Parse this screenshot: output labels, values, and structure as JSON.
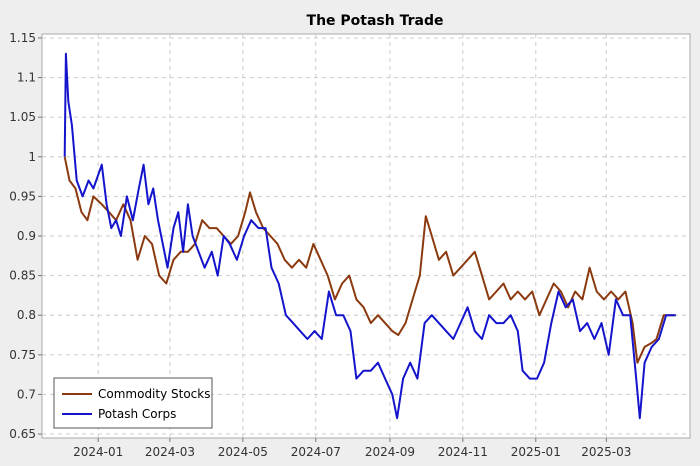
{
  "chart_data": {
    "type": "line",
    "title": "The Potash Trade",
    "xlabel": "",
    "ylabel": "",
    "ylim": [
      0.645,
      1.155
    ],
    "xlim": [
      "2023-11-15",
      "2025-05-10"
    ],
    "y_ticks": [
      "0.65",
      "0.7",
      "0.75",
      "0.8",
      "0.85",
      "0.9",
      "0.95",
      "1",
      "1.05",
      "1.1",
      "1.15"
    ],
    "x_ticks": [
      "2024-01",
      "2024-03",
      "2024-05",
      "2024-07",
      "2024-09",
      "2024-11",
      "2025-01",
      "2025-03"
    ],
    "grid": true,
    "legend_position": "bottom-left",
    "background": "#ffffff",
    "series": [
      {
        "name": "Commodity Stocks",
        "color": "#8b3a0f",
        "points": [
          [
            "2023-12-04",
            1.0
          ],
          [
            "2023-12-08",
            0.97
          ],
          [
            "2023-12-13",
            0.96
          ],
          [
            "2023-12-18",
            0.93
          ],
          [
            "2023-12-23",
            0.92
          ],
          [
            "2023-12-28",
            0.95
          ],
          [
            "2024-01-04",
            0.94
          ],
          [
            "2024-01-10",
            0.93
          ],
          [
            "2024-01-16",
            0.92
          ],
          [
            "2024-01-22",
            0.94
          ],
          [
            "2024-01-28",
            0.92
          ],
          [
            "2024-02-03",
            0.87
          ],
          [
            "2024-02-09",
            0.9
          ],
          [
            "2024-02-15",
            0.89
          ],
          [
            "2024-02-21",
            0.85
          ],
          [
            "2024-02-27",
            0.84
          ],
          [
            "2024-03-04",
            0.87
          ],
          [
            "2024-03-10",
            0.88
          ],
          [
            "2024-03-16",
            0.88
          ],
          [
            "2024-03-22",
            0.89
          ],
          [
            "2024-03-28",
            0.92
          ],
          [
            "2024-04-03",
            0.91
          ],
          [
            "2024-04-09",
            0.91
          ],
          [
            "2024-04-15",
            0.9
          ],
          [
            "2024-04-21",
            0.89
          ],
          [
            "2024-04-27",
            0.9
          ],
          [
            "2024-05-03",
            0.93
          ],
          [
            "2024-05-07",
            0.955
          ],
          [
            "2024-05-12",
            0.93
          ],
          [
            "2024-05-18",
            0.91
          ],
          [
            "2024-05-24",
            0.9
          ],
          [
            "2024-05-30",
            0.89
          ],
          [
            "2024-06-05",
            0.87
          ],
          [
            "2024-06-11",
            0.86
          ],
          [
            "2024-06-17",
            0.87
          ],
          [
            "2024-06-23",
            0.86
          ],
          [
            "2024-06-29",
            0.89
          ],
          [
            "2024-07-05",
            0.87
          ],
          [
            "2024-07-11",
            0.85
          ],
          [
            "2024-07-17",
            0.82
          ],
          [
            "2024-07-23",
            0.84
          ],
          [
            "2024-07-29",
            0.85
          ],
          [
            "2024-08-04",
            0.82
          ],
          [
            "2024-08-10",
            0.81
          ],
          [
            "2024-08-16",
            0.79
          ],
          [
            "2024-08-22",
            0.8
          ],
          [
            "2024-08-28",
            0.79
          ],
          [
            "2024-09-03",
            0.78
          ],
          [
            "2024-09-08",
            0.775
          ],
          [
            "2024-09-14",
            0.79
          ],
          [
            "2024-09-20",
            0.82
          ],
          [
            "2024-09-26",
            0.85
          ],
          [
            "2024-10-01",
            0.925
          ],
          [
            "2024-10-06",
            0.9
          ],
          [
            "2024-10-12",
            0.87
          ],
          [
            "2024-10-18",
            0.88
          ],
          [
            "2024-10-24",
            0.85
          ],
          [
            "2024-10-30",
            0.86
          ],
          [
            "2024-11-05",
            0.87
          ],
          [
            "2024-11-11",
            0.88
          ],
          [
            "2024-11-17",
            0.85
          ],
          [
            "2024-11-23",
            0.82
          ],
          [
            "2024-11-29",
            0.83
          ],
          [
            "2024-12-05",
            0.84
          ],
          [
            "2024-12-11",
            0.82
          ],
          [
            "2024-12-17",
            0.83
          ],
          [
            "2024-12-23",
            0.82
          ],
          [
            "2024-12-29",
            0.83
          ],
          [
            "2025-01-04",
            0.8
          ],
          [
            "2025-01-10",
            0.82
          ],
          [
            "2025-01-16",
            0.84
          ],
          [
            "2025-01-22",
            0.83
          ],
          [
            "2025-01-28",
            0.81
          ],
          [
            "2025-02-03",
            0.83
          ],
          [
            "2025-02-09",
            0.82
          ],
          [
            "2025-02-15",
            0.86
          ],
          [
            "2025-02-21",
            0.83
          ],
          [
            "2025-02-27",
            0.82
          ],
          [
            "2025-03-05",
            0.83
          ],
          [
            "2025-03-11",
            0.82
          ],
          [
            "2025-03-17",
            0.83
          ],
          [
            "2025-03-23",
            0.79
          ],
          [
            "2025-03-27",
            0.74
          ],
          [
            "2025-04-02",
            0.76
          ],
          [
            "2025-04-08",
            0.765
          ],
          [
            "2025-04-12",
            0.77
          ],
          [
            "2025-04-18",
            0.8
          ],
          [
            "2025-04-28",
            0.8
          ]
        ]
      },
      {
        "name": "Potash Corps",
        "color": "#1414cc",
        "points": [
          [
            "2023-12-04",
            1.0
          ],
          [
            "2023-12-05",
            1.13
          ],
          [
            "2023-12-07",
            1.07
          ],
          [
            "2023-12-10",
            1.04
          ],
          [
            "2023-12-14",
            0.97
          ],
          [
            "2023-12-19",
            0.95
          ],
          [
            "2023-12-24",
            0.97
          ],
          [
            "2023-12-28",
            0.96
          ],
          [
            "2024-01-04",
            0.99
          ],
          [
            "2024-01-08",
            0.94
          ],
          [
            "2024-01-12",
            0.91
          ],
          [
            "2024-01-16",
            0.92
          ],
          [
            "2024-01-20",
            0.9
          ],
          [
            "2024-01-25",
            0.95
          ],
          [
            "2024-01-30",
            0.92
          ],
          [
            "2024-02-04",
            0.96
          ],
          [
            "2024-02-08",
            0.99
          ],
          [
            "2024-02-12",
            0.94
          ],
          [
            "2024-02-16",
            0.96
          ],
          [
            "2024-02-20",
            0.92
          ],
          [
            "2024-02-24",
            0.89
          ],
          [
            "2024-02-28",
            0.86
          ],
          [
            "2024-03-04",
            0.91
          ],
          [
            "2024-03-08",
            0.93
          ],
          [
            "2024-03-12",
            0.88
          ],
          [
            "2024-03-16",
            0.94
          ],
          [
            "2024-03-20",
            0.9
          ],
          [
            "2024-03-25",
            0.88
          ],
          [
            "2024-03-30",
            0.86
          ],
          [
            "2024-04-05",
            0.88
          ],
          [
            "2024-04-10",
            0.85
          ],
          [
            "2024-04-15",
            0.9
          ],
          [
            "2024-04-20",
            0.89
          ],
          [
            "2024-04-26",
            0.87
          ],
          [
            "2024-05-02",
            0.9
          ],
          [
            "2024-05-08",
            0.92
          ],
          [
            "2024-05-14",
            0.91
          ],
          [
            "2024-05-20",
            0.91
          ],
          [
            "2024-05-25",
            0.86
          ],
          [
            "2024-05-31",
            0.84
          ],
          [
            "2024-06-06",
            0.8
          ],
          [
            "2024-06-12",
            0.79
          ],
          [
            "2024-06-18",
            0.78
          ],
          [
            "2024-06-24",
            0.77
          ],
          [
            "2024-06-30",
            0.78
          ],
          [
            "2024-07-06",
            0.77
          ],
          [
            "2024-07-12",
            0.83
          ],
          [
            "2024-07-18",
            0.8
          ],
          [
            "2024-07-24",
            0.8
          ],
          [
            "2024-07-30",
            0.78
          ],
          [
            "2024-08-04",
            0.72
          ],
          [
            "2024-08-10",
            0.73
          ],
          [
            "2024-08-16",
            0.73
          ],
          [
            "2024-08-22",
            0.74
          ],
          [
            "2024-08-28",
            0.72
          ],
          [
            "2024-09-03",
            0.7
          ],
          [
            "2024-09-07",
            0.67
          ],
          [
            "2024-09-12",
            0.72
          ],
          [
            "2024-09-18",
            0.74
          ],
          [
            "2024-09-24",
            0.72
          ],
          [
            "2024-09-30",
            0.79
          ],
          [
            "2024-10-06",
            0.8
          ],
          [
            "2024-10-12",
            0.79
          ],
          [
            "2024-10-18",
            0.78
          ],
          [
            "2024-10-24",
            0.77
          ],
          [
            "2024-10-30",
            0.79
          ],
          [
            "2024-11-05",
            0.81
          ],
          [
            "2024-11-11",
            0.78
          ],
          [
            "2024-11-17",
            0.77
          ],
          [
            "2024-11-23",
            0.8
          ],
          [
            "2024-11-29",
            0.79
          ],
          [
            "2024-12-05",
            0.79
          ],
          [
            "2024-12-11",
            0.8
          ],
          [
            "2024-12-17",
            0.78
          ],
          [
            "2024-12-21",
            0.73
          ],
          [
            "2024-12-27",
            0.72
          ],
          [
            "2025-01-02",
            0.72
          ],
          [
            "2025-01-08",
            0.74
          ],
          [
            "2025-01-14",
            0.79
          ],
          [
            "2025-01-20",
            0.83
          ],
          [
            "2025-01-26",
            0.81
          ],
          [
            "2025-02-01",
            0.82
          ],
          [
            "2025-02-07",
            0.78
          ],
          [
            "2025-02-13",
            0.79
          ],
          [
            "2025-02-19",
            0.77
          ],
          [
            "2025-02-25",
            0.79
          ],
          [
            "2025-03-03",
            0.75
          ],
          [
            "2025-03-09",
            0.82
          ],
          [
            "2025-03-15",
            0.8
          ],
          [
            "2025-03-21",
            0.8
          ],
          [
            "2025-03-26",
            0.72
          ],
          [
            "2025-03-29",
            0.67
          ],
          [
            "2025-04-02",
            0.74
          ],
          [
            "2025-04-08",
            0.76
          ],
          [
            "2025-04-14",
            0.77
          ],
          [
            "2025-04-20",
            0.8
          ],
          [
            "2025-04-28",
            0.8
          ]
        ]
      }
    ]
  }
}
